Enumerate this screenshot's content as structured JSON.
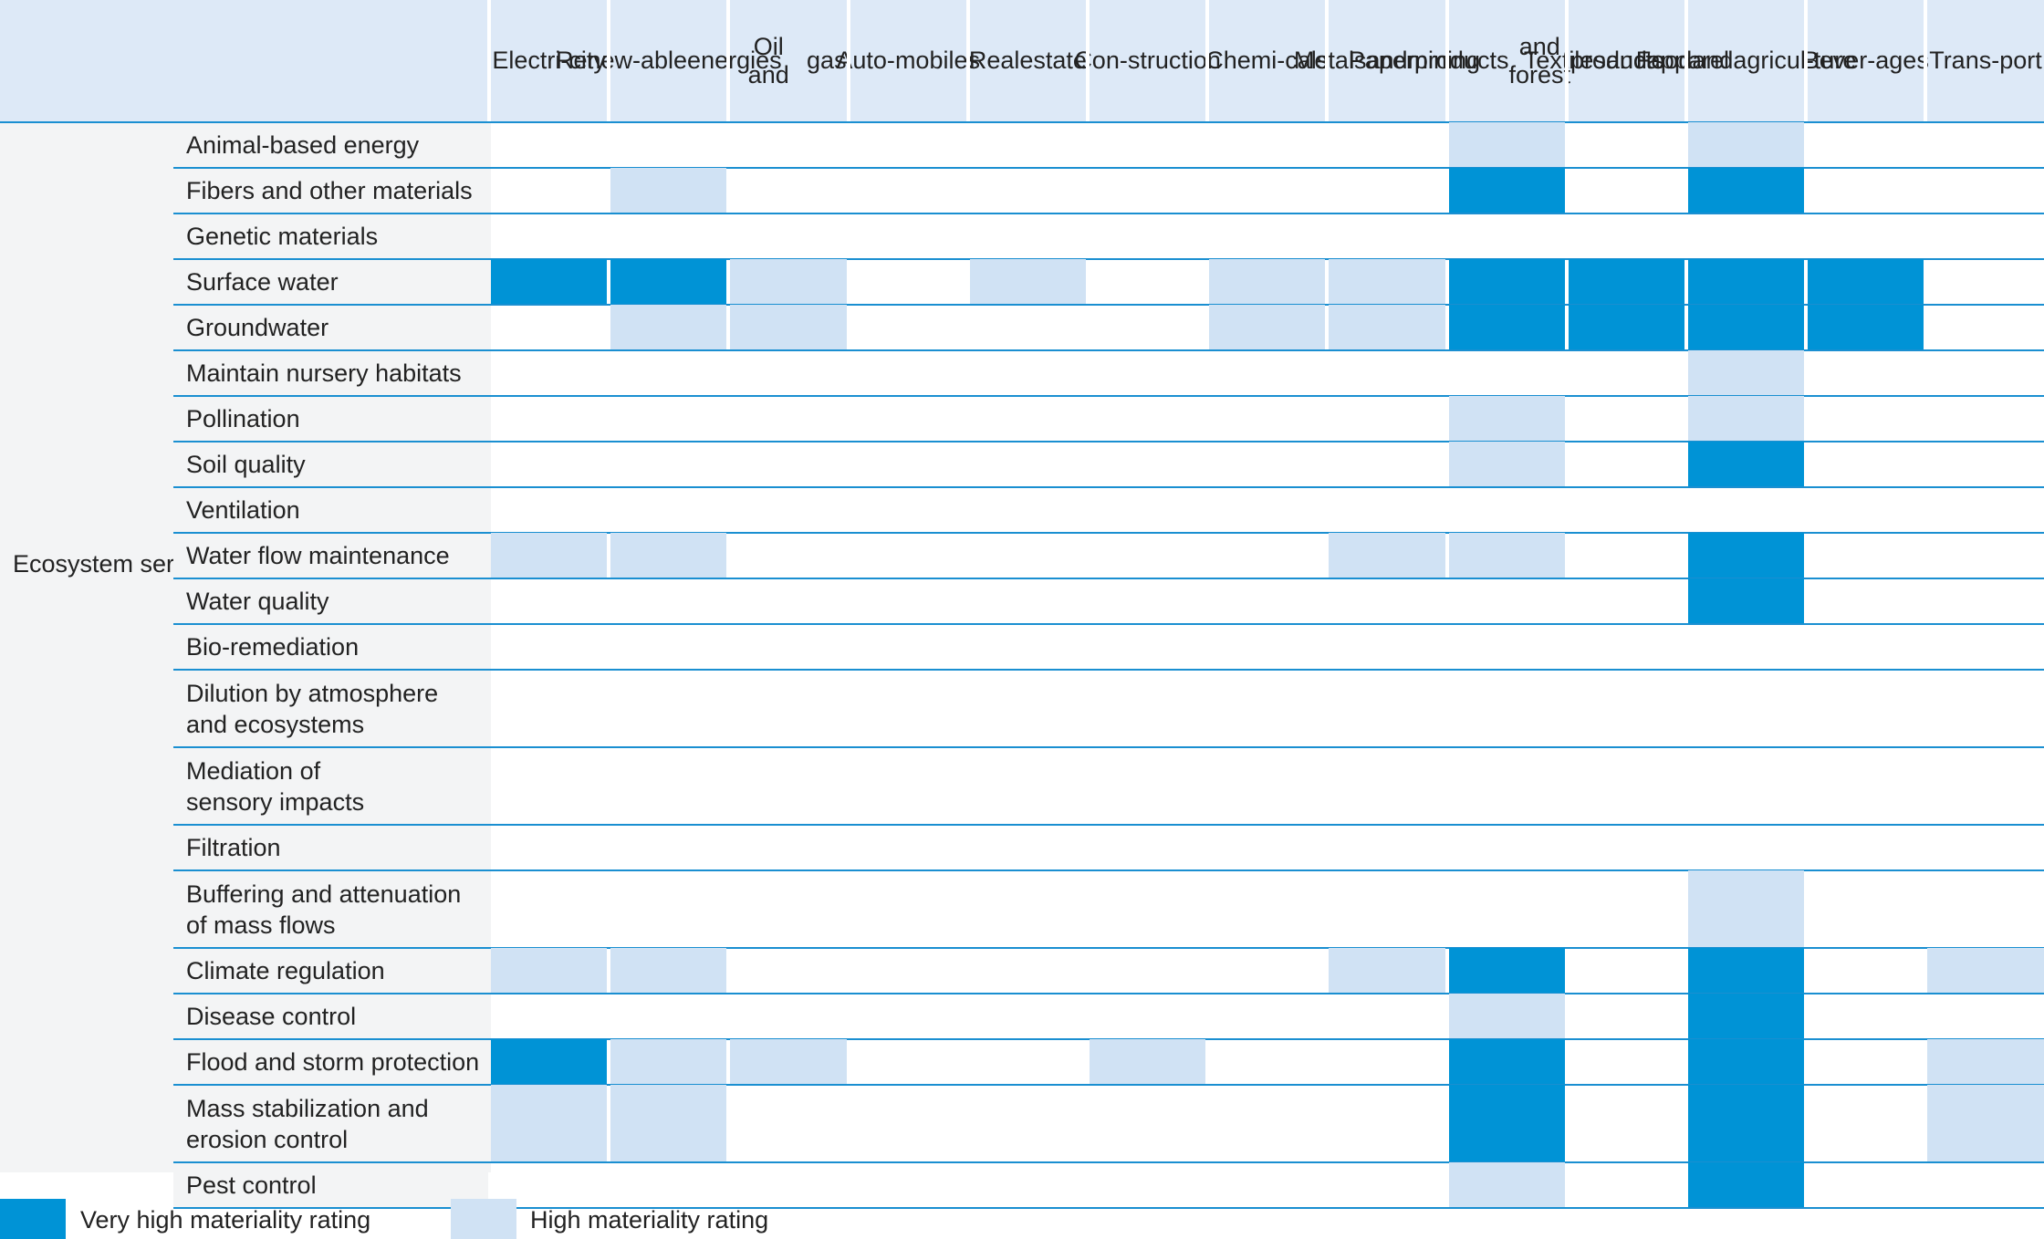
{
  "chart_data": {
    "type": "table",
    "title": "",
    "group_label": "Ecosystem services",
    "sectors": [
      [
        "Electri-",
        "city"
      ],
      [
        "Renew-",
        "able",
        "energies"
      ],
      [
        "Oil and",
        "gas"
      ],
      [
        "Auto-",
        "mobiles"
      ],
      [
        "Real",
        "estate"
      ],
      [
        "Con-",
        "struction"
      ],
      [
        "Chemi-",
        "cals"
      ],
      [
        "Metals",
        "and",
        "mining"
      ],
      [
        "Paper",
        "products",
        "and forest",
        "products"
      ],
      [
        "Textiles",
        "and",
        "apparel"
      ],
      [
        "Food",
        "and",
        "agricul-",
        "ture"
      ],
      [
        "Bever-",
        "ages"
      ],
      [
        "Trans-",
        "port"
      ]
    ],
    "services": [
      {
        "label": [
          "Animal-based energy"
        ],
        "ratings": [
          0,
          0,
          0,
          0,
          0,
          0,
          0,
          0,
          1,
          0,
          1,
          0,
          0
        ]
      },
      {
        "label": [
          "Fibers and other materials"
        ],
        "ratings": [
          0,
          1,
          0,
          0,
          0,
          0,
          0,
          0,
          2,
          0,
          2,
          0,
          0
        ]
      },
      {
        "label": [
          "Genetic materials"
        ],
        "ratings": [
          0,
          0,
          0,
          0,
          0,
          0,
          0,
          0,
          0,
          0,
          0,
          0,
          0
        ]
      },
      {
        "label": [
          "Surface water"
        ],
        "ratings": [
          2,
          2,
          1,
          0,
          1,
          0,
          1,
          1,
          2,
          2,
          2,
          2,
          0
        ]
      },
      {
        "label": [
          "Groundwater"
        ],
        "ratings": [
          0,
          1,
          1,
          0,
          0,
          0,
          1,
          1,
          2,
          2,
          2,
          2,
          0
        ]
      },
      {
        "label": [
          "Maintain nursery habitats"
        ],
        "ratings": [
          0,
          0,
          0,
          0,
          0,
          0,
          0,
          0,
          0,
          0,
          1,
          0,
          0
        ]
      },
      {
        "label": [
          "Pollination"
        ],
        "ratings": [
          0,
          0,
          0,
          0,
          0,
          0,
          0,
          0,
          1,
          0,
          1,
          0,
          0
        ]
      },
      {
        "label": [
          "Soil quality"
        ],
        "ratings": [
          0,
          0,
          0,
          0,
          0,
          0,
          0,
          0,
          1,
          0,
          2,
          0,
          0
        ]
      },
      {
        "label": [
          "Ventilation"
        ],
        "ratings": [
          0,
          0,
          0,
          0,
          0,
          0,
          0,
          0,
          0,
          0,
          0,
          0,
          0
        ]
      },
      {
        "label": [
          "Water flow maintenance"
        ],
        "ratings": [
          1,
          1,
          0,
          0,
          0,
          0,
          0,
          1,
          1,
          0,
          2,
          0,
          0
        ]
      },
      {
        "label": [
          "Water quality"
        ],
        "ratings": [
          0,
          0,
          0,
          0,
          0,
          0,
          0,
          0,
          0,
          0,
          2,
          0,
          0
        ]
      },
      {
        "label": [
          "Bio-remediation"
        ],
        "ratings": [
          0,
          0,
          0,
          0,
          0,
          0,
          0,
          0,
          0,
          0,
          0,
          0,
          0
        ]
      },
      {
        "label": [
          "Dilution by atmosphere",
          "and ecosystems"
        ],
        "ratings": [
          0,
          0,
          0,
          0,
          0,
          0,
          0,
          0,
          0,
          0,
          0,
          0,
          0
        ]
      },
      {
        "label": [
          "Mediation of",
          "sensory impacts"
        ],
        "ratings": [
          0,
          0,
          0,
          0,
          0,
          0,
          0,
          0,
          0,
          0,
          0,
          0,
          0
        ]
      },
      {
        "label": [
          "Filtration"
        ],
        "ratings": [
          0,
          0,
          0,
          0,
          0,
          0,
          0,
          0,
          0,
          0,
          0,
          0,
          0
        ]
      },
      {
        "label": [
          "Buffering and attenuation",
          "of mass flows"
        ],
        "ratings": [
          0,
          0,
          0,
          0,
          0,
          0,
          0,
          0,
          0,
          0,
          1,
          0,
          0
        ]
      },
      {
        "label": [
          "Climate regulation"
        ],
        "ratings": [
          1,
          1,
          0,
          0,
          0,
          0,
          0,
          1,
          2,
          0,
          2,
          0,
          1
        ]
      },
      {
        "label": [
          "Disease control"
        ],
        "ratings": [
          0,
          0,
          0,
          0,
          0,
          0,
          0,
          0,
          1,
          0,
          2,
          0,
          0
        ]
      },
      {
        "label": [
          "Flood and storm protection"
        ],
        "ratings": [
          2,
          1,
          1,
          0,
          0,
          1,
          0,
          0,
          2,
          0,
          2,
          0,
          1
        ]
      },
      {
        "label": [
          "Mass stabilization and",
          "erosion control"
        ],
        "ratings": [
          1,
          1,
          0,
          0,
          0,
          0,
          0,
          0,
          2,
          0,
          2,
          0,
          1
        ]
      },
      {
        "label": [
          "Pest control"
        ],
        "ratings": [
          0,
          0,
          0,
          0,
          0,
          0,
          0,
          0,
          1,
          0,
          2,
          0,
          0
        ]
      }
    ],
    "rating_scale": {
      "0": "none",
      "1": "High materiality rating",
      "2": "Very high materiality rating"
    },
    "legend": [
      {
        "level": 2,
        "label": "Very high materiality rating",
        "color": "#0093d6"
      },
      {
        "level": 1,
        "label": "High materiality rating",
        "color": "#d0e2f4"
      }
    ]
  }
}
